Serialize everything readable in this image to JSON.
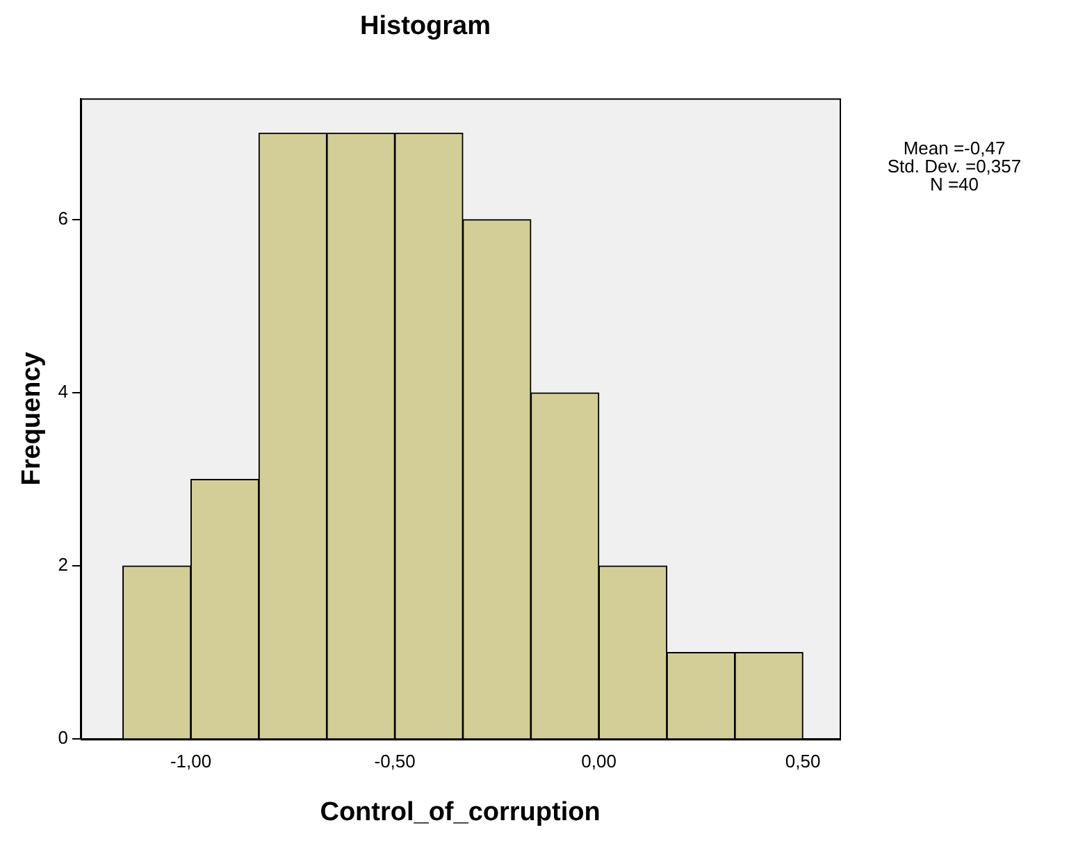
{
  "chart_data": {
    "type": "histogram",
    "title": "Histogram",
    "xlabel": "Control_of_corruption",
    "ylabel": "Frequency",
    "bins": [
      -1.1667,
      -1.0,
      -0.8333,
      -0.6667,
      -0.5,
      -0.3333,
      -0.1667,
      0,
      0.1667,
      0.3333,
      0.5
    ],
    "values": [
      2,
      3,
      7,
      7,
      7,
      6,
      4,
      2,
      1,
      1
    ],
    "color": "#d3ce97",
    "xlim": [
      -1.27,
      0.59
    ],
    "xticks": [
      {
        "value": -1,
        "label": "-1,00"
      },
      {
        "value": -0.5,
        "label": "-0,50"
      },
      {
        "value": 0,
        "label": "0,00"
      },
      {
        "value": 0.5,
        "label": "0,50"
      }
    ],
    "ylim": [
      0,
      7.4
    ],
    "yticks": [
      0,
      2,
      4,
      6
    ],
    "annotations": [
      "Mean =-0,47",
      "Std. Dev. =0,357",
      "N =40"
    ]
  }
}
